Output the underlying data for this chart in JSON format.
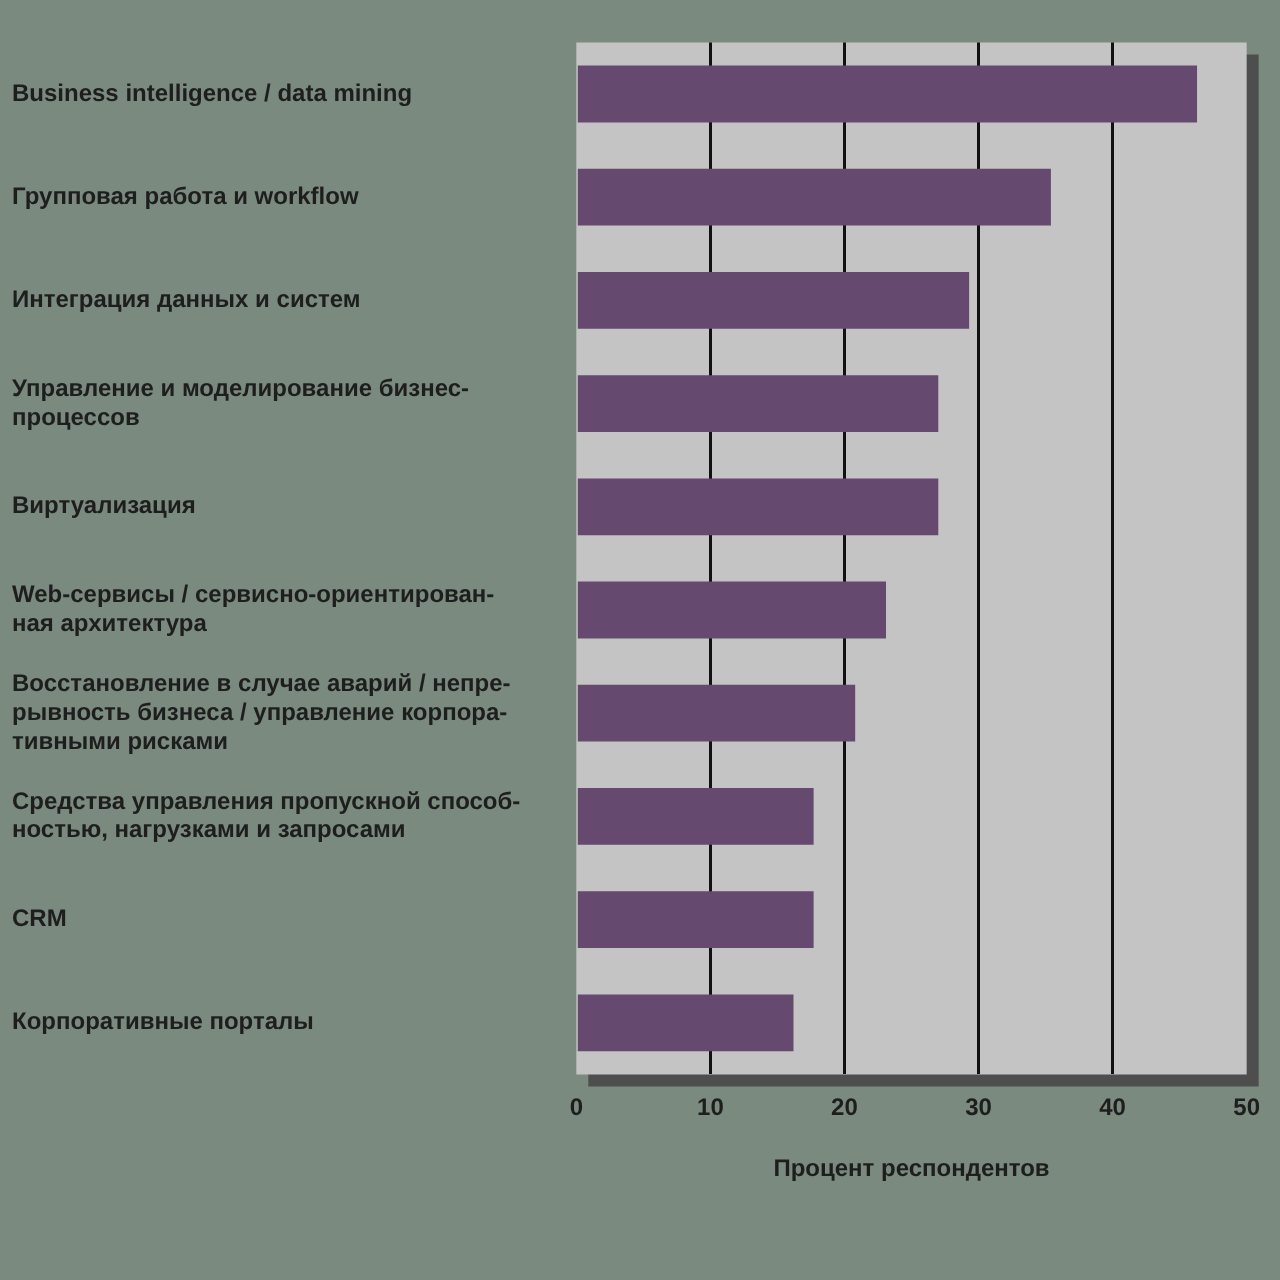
{
  "chart_data": {
    "type": "bar",
    "orientation": "horizontal",
    "xlabel": "Процент респондентов",
    "categories": [
      "Business intelligence / data mining",
      "Групповая работа и workflow",
      "Интеграция данных и систем",
      "Управление и моделирование бизнес-\nпроцессов",
      "Виртуализация",
      "Web-сервисы / сервисно-ориентирован-\nная архитектура",
      "Восстановление в случае аварий / непре-\nрывность бизнеса / управление корпора-\nтивными рисками",
      "Средства управления пропускной способ-\nностью, нагрузками и запросами",
      "CRM",
      "Корпоративные порталы"
    ],
    "values": [
      46.3,
      35.4,
      29.3,
      27.0,
      27.0,
      23.1,
      20.8,
      17.7,
      17.7,
      16.2
    ],
    "color": "#66496e",
    "xlim": [
      0,
      50
    ],
    "xticks": [
      0,
      10,
      20,
      30,
      40,
      50
    ],
    "grid": "x",
    "legend": false
  }
}
